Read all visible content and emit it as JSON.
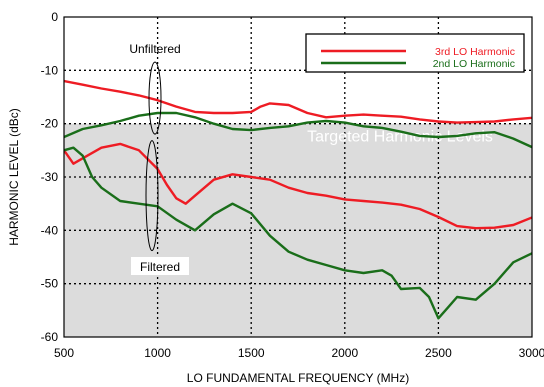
{
  "chart_data": {
    "type": "line",
    "xlabel": "LO FUNDAMENTAL FREQUENCY (MHz)",
    "ylabel": "HARMONIC LEVEL (dBc)",
    "xlim": [
      500,
      3000
    ],
    "ylim": [
      -60,
      0
    ],
    "x_ticks": [
      "500",
      "1000",
      "1500",
      "2000",
      "2500",
      "3000"
    ],
    "y_ticks": [
      "0",
      "-10",
      "-20",
      "-30",
      "-40",
      "-50",
      "-60"
    ],
    "grid": "dotted",
    "legend_position": "top-right",
    "shaded_region": {
      "label": "Targeted Harmonic Levels",
      "y_from": -60,
      "y_to": -20,
      "color": "#dcdcdc"
    },
    "annotations": {
      "unfiltered": "Unfiltered",
      "filtered": "Filtered"
    },
    "series": [
      {
        "name": "3rd LO Harmonic",
        "color": "#ee1c24",
        "group": "unfiltered",
        "x": [
          500,
          600,
          700,
          800,
          900,
          1000,
          1100,
          1200,
          1300,
          1400,
          1500,
          1550,
          1600,
          1700,
          1800,
          1900,
          2000,
          2100,
          2200,
          2300,
          2400,
          2500,
          2600,
          2700,
          2800,
          2900,
          3000
        ],
        "y": [
          -12,
          -12.7,
          -13.4,
          -14,
          -14.7,
          -15.6,
          -16.8,
          -17.8,
          -18,
          -18,
          -17.8,
          -16.8,
          -16.2,
          -16.5,
          -18,
          -18.8,
          -18.5,
          -18.3,
          -18.5,
          -18.7,
          -19.2,
          -19.6,
          -19.8,
          -19.7,
          -19.6,
          -19.2,
          -18.9
        ]
      },
      {
        "name": "2nd LO Harmonic",
        "color": "#1a6e1a",
        "group": "unfiltered",
        "x": [
          500,
          600,
          700,
          800,
          900,
          1000,
          1100,
          1200,
          1300,
          1400,
          1500,
          1600,
          1700,
          1800,
          1900,
          2000,
          2100,
          2200,
          2300,
          2400,
          2500,
          2600,
          2700,
          2800,
          2900,
          3000
        ],
        "y": [
          -22.5,
          -21,
          -20.3,
          -19.5,
          -18.5,
          -18,
          -18,
          -18.8,
          -20,
          -21,
          -21.2,
          -20.8,
          -20.5,
          -19.8,
          -19.5,
          -19.8,
          -20.5,
          -20.8,
          -21.5,
          -22.3,
          -22.5,
          -22.3,
          -21.8,
          -21.6,
          -22.8,
          -24.4
        ]
      },
      {
        "name": "3rd LO Harmonic",
        "color": "#ee1c24",
        "group": "filtered",
        "x": [
          500,
          550,
          600,
          700,
          800,
          900,
          1000,
          1050,
          1100,
          1150,
          1200,
          1300,
          1400,
          1500,
          1600,
          1700,
          1800,
          1900,
          2000,
          2100,
          2200,
          2300,
          2400,
          2500,
          2600,
          2700,
          2800,
          2900,
          3000
        ],
        "y": [
          -25,
          -27.5,
          -26.5,
          -24.5,
          -23.8,
          -25,
          -28.5,
          -31.5,
          -34,
          -35,
          -33.5,
          -30.5,
          -29.5,
          -30,
          -30.5,
          -32,
          -33,
          -33.5,
          -34.2,
          -34.5,
          -34.8,
          -35.2,
          -36,
          -37.5,
          -39.2,
          -39.6,
          -39.5,
          -39,
          -37.6
        ]
      },
      {
        "name": "2nd LO Harmonic",
        "color": "#1a6e1a",
        "group": "filtered",
        "x": [
          500,
          550,
          600,
          650,
          700,
          800,
          900,
          1000,
          1100,
          1200,
          1300,
          1400,
          1500,
          1600,
          1700,
          1800,
          1900,
          2000,
          2100,
          2200,
          2250,
          2300,
          2400,
          2450,
          2500,
          2550,
          2600,
          2700,
          2800,
          2900,
          3000
        ],
        "y": [
          -25,
          -24.5,
          -26,
          -30,
          -32,
          -34.5,
          -35,
          -35.5,
          -38,
          -40,
          -37,
          -35,
          -36.8,
          -41,
          -44,
          -45.5,
          -46.5,
          -47.5,
          -48,
          -47.5,
          -48.5,
          -51,
          -50.8,
          -52.5,
          -56.5,
          -54.5,
          -52.5,
          -53,
          -50,
          -46,
          -44.3
        ]
      }
    ]
  }
}
